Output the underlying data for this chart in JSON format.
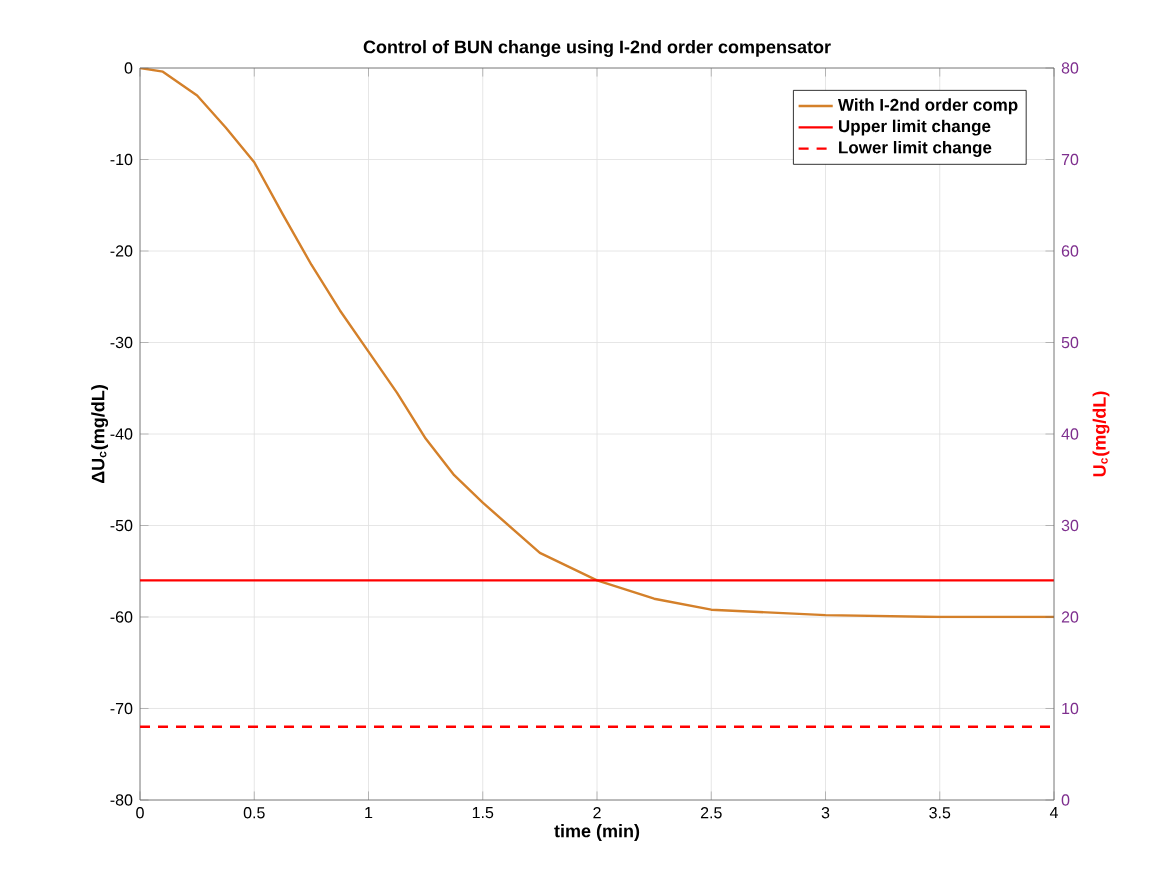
{
  "chart_data": {
    "type": "line",
    "title": "Control of BUN change using I-2nd order compensator",
    "xlabel": "time (min)",
    "ylabel": "ΔU$_{c}$(mg/dL)",
    "y2label": "U$_{c}$(mg/dL)",
    "xlim": [
      0,
      4
    ],
    "xticks": [
      0,
      0.5,
      1,
      1.5,
      2,
      2.5,
      3,
      3.5,
      4
    ],
    "ylim": [
      -80,
      0
    ],
    "yticks": [
      -80,
      -70,
      -60,
      -50,
      -40,
      -30,
      -20,
      -10,
      0
    ],
    "y2lim": [
      0,
      80
    ],
    "y2ticks": [
      0,
      10,
      20,
      30,
      40,
      50,
      60,
      70,
      80
    ],
    "grid": true,
    "legend": "top right",
    "marker": "none",
    "series": [
      {
        "name": "With I-2nd order comp",
        "color": "#d4802a",
        "line_style": "solid",
        "x": [
          0,
          0.1,
          0.25,
          0.375,
          0.5,
          0.625,
          0.75,
          0.875,
          1,
          1.125,
          1.25,
          1.375,
          1.5,
          1.75,
          2,
          2.25,
          2.5,
          3,
          3.5,
          4
        ],
        "values": [
          0,
          -0.4,
          -3,
          -6.5,
          -10.3,
          -16,
          -21.5,
          -26.5,
          -31,
          -35.5,
          -40.5,
          -44.5,
          -47.5,
          -53,
          -56,
          -58,
          -59.2,
          -59.8,
          -60,
          -60
        ]
      },
      {
        "name": "Upper limit change",
        "color": "#ff0000",
        "line_style": "solid",
        "x": [
          0,
          4
        ],
        "values": [
          -56,
          -56
        ]
      },
      {
        "name": "Lower limit change",
        "color": "#ff0000",
        "line_style": "dashed",
        "x": [
          0,
          4
        ],
        "values": [
          -72,
          -72
        ]
      }
    ]
  }
}
